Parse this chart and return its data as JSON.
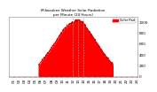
{
  "title": "Milwaukee Weather Solar Radiation\nper Minute (24 Hours)",
  "bg_color": "#ffffff",
  "fill_color": "#ff0000",
  "line_color": "#cc0000",
  "legend_color": "#ff0000",
  "grid_color": "#aaaaaa",
  "num_points": 1440,
  "peak_value": 1000,
  "ylim": [
    0,
    1100
  ],
  "xlim": [
    0,
    1440
  ],
  "dashed_gridlines": [
    720,
    780,
    840
  ],
  "xtick_positions": [
    60,
    120,
    180,
    240,
    300,
    360,
    420,
    480,
    540,
    600,
    660,
    720,
    780,
    840,
    900,
    960,
    1020,
    1080,
    1140,
    1200,
    1260,
    1320,
    1380,
    1440
  ],
  "x_labels": [
    "01",
    "02",
    "03",
    "04",
    "05",
    "06",
    "07",
    "08",
    "09",
    "10",
    "11",
    "12",
    "13",
    "14",
    "15",
    "16",
    "17",
    "18",
    "19",
    "20",
    "21",
    "22",
    "23",
    "24"
  ],
  "y_ticks": [
    0,
    200,
    400,
    600,
    800,
    1000
  ],
  "text_color": "#000000",
  "font_size": 3.5,
  "legend_label": "Solar Rad"
}
